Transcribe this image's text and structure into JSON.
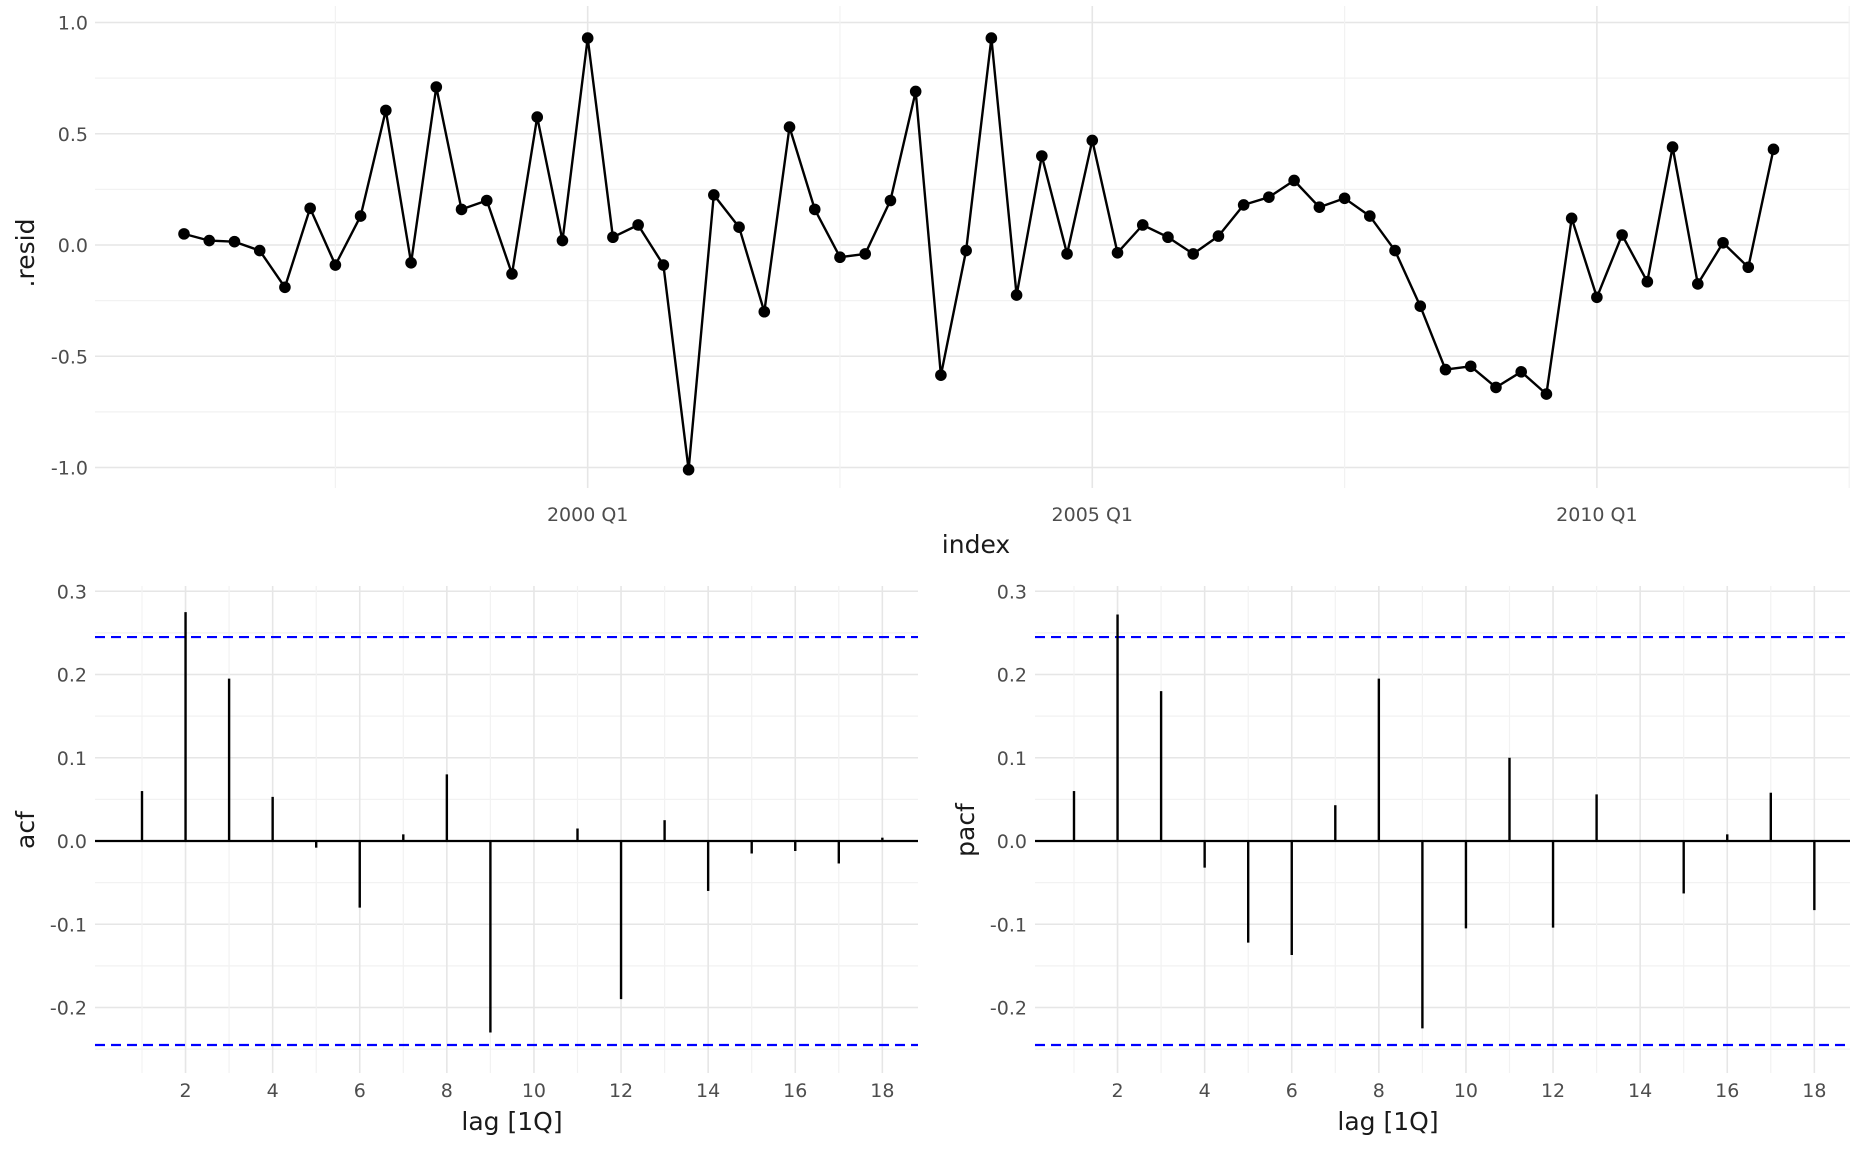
{
  "chart_data": [
    {
      "type": "line",
      "panel": "residuals",
      "xlabel": "index",
      "ylabel": ".resid",
      "ylim": [
        -1.08,
        1.0
      ],
      "yticks": [
        1.0,
        0.5,
        0.0,
        -0.5,
        -1.0
      ],
      "ytick_labels": [
        "1.0",
        "0.5",
        "0.0",
        "-0.5",
        "-1.0"
      ],
      "xtick_labels": [
        "2000 Q1",
        "2005 Q1",
        "2010 Q1"
      ],
      "xtick_index": [
        16,
        36,
        56
      ],
      "grid": true,
      "values": [
        0.05,
        0.02,
        0.015,
        -0.025,
        -0.19,
        0.165,
        -0.09,
        0.13,
        0.605,
        -0.08,
        0.71,
        0.16,
        0.2,
        -0.13,
        0.575,
        0.02,
        0.93,
        0.035,
        0.09,
        -0.09,
        -1.01,
        0.225,
        0.08,
        -0.3,
        0.53,
        0.16,
        -0.055,
        -0.04,
        0.2,
        0.69,
        -0.585,
        -0.025,
        0.93,
        -0.225,
        0.4,
        -0.04,
        0.47,
        -0.035,
        0.09,
        0.035,
        -0.04,
        0.04,
        0.18,
        0.215,
        0.29,
        0.17,
        0.21,
        0.13,
        -0.025,
        -0.275,
        -0.56,
        -0.545,
        -0.64,
        -0.57,
        -0.67,
        0.12,
        -0.235,
        0.045,
        -0.165,
        0.44,
        -0.175,
        0.01,
        -0.1,
        0.43
      ]
    },
    {
      "type": "bar",
      "panel": "acf",
      "xlabel": "lag [1Q]",
      "ylabel": "acf",
      "ylim": [
        -0.255,
        0.3
      ],
      "yticks": [
        0.3,
        0.2,
        0.1,
        0.0,
        -0.1,
        -0.2
      ],
      "ytick_labels": [
        "0.3",
        "0.2",
        "0.1",
        "0.0",
        "-0.1",
        "-0.2"
      ],
      "xticks": [
        2,
        4,
        6,
        8,
        10,
        12,
        14,
        16,
        18
      ],
      "xtick_labels": [
        "2",
        "4",
        "6",
        "8",
        "10",
        "12",
        "14",
        "16",
        "18"
      ],
      "lags": [
        1,
        2,
        3,
        4,
        5,
        6,
        7,
        8,
        9,
        10,
        11,
        12,
        13,
        14,
        15,
        16,
        17,
        18
      ],
      "values": [
        0.06,
        0.275,
        0.195,
        0.053,
        -0.008,
        -0.08,
        0.008,
        0.08,
        -0.23,
        0.0,
        0.015,
        -0.19,
        0.025,
        -0.06,
        -0.015,
        -0.012,
        -0.027,
        0.004
      ],
      "ci": 0.245,
      "ci_color": "#0000ff"
    },
    {
      "type": "bar",
      "panel": "pacf",
      "xlabel": "lag [1Q]",
      "ylabel": "pacf",
      "ylim": [
        -0.255,
        0.3
      ],
      "yticks": [
        0.3,
        0.2,
        0.1,
        0.0,
        -0.1,
        -0.2
      ],
      "ytick_labels": [
        "0.3",
        "0.2",
        "0.1",
        "0.0",
        "-0.1",
        "-0.2"
      ],
      "xticks": [
        2,
        4,
        6,
        8,
        10,
        12,
        14,
        16,
        18
      ],
      "xtick_labels": [
        "2",
        "4",
        "6",
        "8",
        "10",
        "12",
        "14",
        "16",
        "18"
      ],
      "lags": [
        1,
        2,
        3,
        4,
        5,
        6,
        7,
        8,
        9,
        10,
        11,
        12,
        13,
        14,
        15,
        16,
        17,
        18
      ],
      "values": [
        0.06,
        0.272,
        0.18,
        -0.032,
        -0.122,
        -0.137,
        0.043,
        0.195,
        -0.225,
        -0.105,
        0.1,
        -0.104,
        0.056,
        0.0,
        -0.063,
        0.008,
        0.058,
        -0.083
      ],
      "ci": 0.245,
      "ci_color": "#0000ff"
    }
  ]
}
